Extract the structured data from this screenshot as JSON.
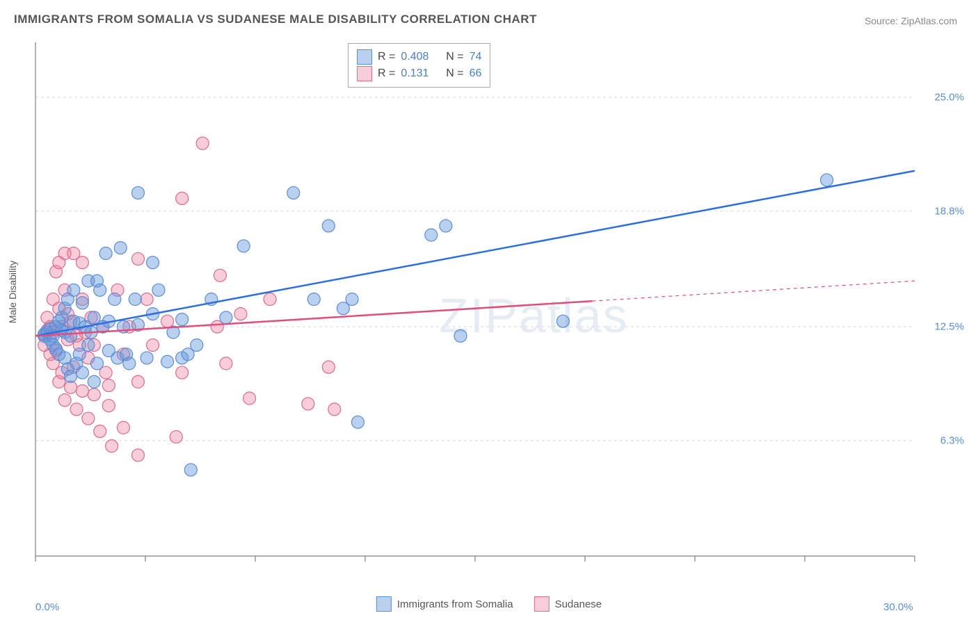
{
  "title": "IMMIGRANTS FROM SOMALIA VS SUDANESE MALE DISABILITY CORRELATION CHART",
  "source_label": "Source: ZipAtlas.com",
  "watermark": "ZIPatlas",
  "y_axis_label": "Male Disability",
  "chart": {
    "type": "scatter",
    "background_color": "#ffffff",
    "grid_color": "#d8d8d8",
    "xlim": [
      0,
      30
    ],
    "ylim": [
      0,
      28
    ],
    "x_ticks_minor": [
      0,
      3.75,
      7.5,
      11.25,
      15,
      18.75,
      22.5,
      26.25,
      30
    ],
    "x_tick_labels": [
      {
        "v": 0,
        "label": "0.0%"
      },
      {
        "v": 30,
        "label": "30.0%"
      }
    ],
    "y_gridlines": [
      6.3,
      12.5,
      18.8,
      25.0
    ],
    "y_tick_labels": [
      {
        "v": 6.3,
        "label": "6.3%"
      },
      {
        "v": 12.5,
        "label": "12.5%"
      },
      {
        "v": 18.8,
        "label": "18.8%"
      },
      {
        "v": 25.0,
        "label": "25.0%"
      }
    ],
    "tick_label_color": "#5a8dd6",
    "tick_label_fontsize": 15,
    "axis_line_color": "#666666"
  },
  "series": [
    {
      "name": "Immigrants from Somalia",
      "key": "somalia",
      "color_fill": "rgba(100,150,220,0.45)",
      "color_stroke": "#5a8dd6",
      "line_color": "#2d6fe0",
      "line_width": 2.5,
      "stats": {
        "R": "0.408",
        "N": "74"
      },
      "trend": {
        "x1": 0,
        "y1": 12.0,
        "x2": 30,
        "y2": 21.0,
        "solid_until_x": 30
      },
      "points": [
        [
          0.3,
          12.0
        ],
        [
          0.3,
          12.1
        ],
        [
          0.4,
          12.2
        ],
        [
          0.5,
          11.8
        ],
        [
          0.5,
          12.4
        ],
        [
          0.6,
          12.0
        ],
        [
          0.6,
          11.5
        ],
        [
          0.7,
          12.5
        ],
        [
          0.7,
          11.3
        ],
        [
          0.8,
          12.8
        ],
        [
          0.8,
          11.0
        ],
        [
          0.9,
          13.0
        ],
        [
          0.9,
          12.3
        ],
        [
          1.0,
          12.2
        ],
        [
          1.0,
          10.8
        ],
        [
          1.0,
          13.5
        ],
        [
          1.1,
          10.2
        ],
        [
          1.1,
          14.0
        ],
        [
          1.2,
          12.0
        ],
        [
          1.2,
          9.8
        ],
        [
          1.3,
          14.5
        ],
        [
          1.3,
          12.8
        ],
        [
          1.4,
          10.5
        ],
        [
          1.5,
          11.0
        ],
        [
          1.5,
          12.7
        ],
        [
          1.6,
          13.8
        ],
        [
          1.6,
          10.0
        ],
        [
          1.7,
          12.5
        ],
        [
          1.8,
          11.5
        ],
        [
          1.8,
          15.0
        ],
        [
          1.9,
          12.2
        ],
        [
          2.0,
          9.5
        ],
        [
          2.0,
          13.0
        ],
        [
          2.1,
          15.0
        ],
        [
          2.1,
          10.5
        ],
        [
          2.2,
          14.5
        ],
        [
          2.3,
          12.5
        ],
        [
          2.4,
          16.5
        ],
        [
          2.5,
          12.8
        ],
        [
          2.5,
          11.2
        ],
        [
          2.7,
          14.0
        ],
        [
          2.8,
          10.8
        ],
        [
          2.9,
          16.8
        ],
        [
          3.0,
          12.5
        ],
        [
          3.1,
          11.0
        ],
        [
          3.2,
          10.5
        ],
        [
          3.4,
          14.0
        ],
        [
          3.5,
          19.8
        ],
        [
          3.5,
          12.6
        ],
        [
          3.8,
          10.8
        ],
        [
          4.0,
          16.0
        ],
        [
          4.0,
          13.2
        ],
        [
          4.2,
          14.5
        ],
        [
          4.5,
          10.6
        ],
        [
          4.7,
          12.2
        ],
        [
          5.0,
          10.8
        ],
        [
          5.0,
          12.9
        ],
        [
          5.2,
          11.0
        ],
        [
          5.3,
          4.7
        ],
        [
          5.5,
          11.5
        ],
        [
          6.0,
          14.0
        ],
        [
          6.5,
          13.0
        ],
        [
          7.1,
          16.9
        ],
        [
          8.8,
          19.8
        ],
        [
          9.5,
          14.0
        ],
        [
          10.0,
          18.0
        ],
        [
          10.5,
          13.5
        ],
        [
          10.8,
          14.0
        ],
        [
          11.0,
          7.3
        ],
        [
          13.5,
          17.5
        ],
        [
          14.0,
          18.0
        ],
        [
          18.0,
          12.8
        ],
        [
          14.5,
          12.0
        ],
        [
          27.0,
          20.5
        ]
      ]
    },
    {
      "name": "Sudanese",
      "key": "sudanese",
      "color_fill": "rgba(235,130,160,0.40)",
      "color_stroke": "#e06a8c",
      "line_color": "#e34d7a",
      "line_width": 2.5,
      "stats": {
        "R": "0.131",
        "N": "66"
      },
      "trend": {
        "x1": 0,
        "y1": 12.0,
        "x2": 30,
        "y2": 15.0,
        "solid_until_x": 19
      },
      "points": [
        [
          0.3,
          12.0
        ],
        [
          0.3,
          11.5
        ],
        [
          0.4,
          12.3
        ],
        [
          0.4,
          13.0
        ],
        [
          0.5,
          11.0
        ],
        [
          0.5,
          12.5
        ],
        [
          0.6,
          14.0
        ],
        [
          0.6,
          10.5
        ],
        [
          0.6,
          12.2
        ],
        [
          0.7,
          15.5
        ],
        [
          0.7,
          11.2
        ],
        [
          0.8,
          13.5
        ],
        [
          0.8,
          9.5
        ],
        [
          0.8,
          16.0
        ],
        [
          0.9,
          12.5
        ],
        [
          0.9,
          10.0
        ],
        [
          1.0,
          14.5
        ],
        [
          1.0,
          16.5
        ],
        [
          1.0,
          8.5
        ],
        [
          1.1,
          11.8
        ],
        [
          1.1,
          13.2
        ],
        [
          1.2,
          9.2
        ],
        [
          1.2,
          12.8
        ],
        [
          1.3,
          16.5
        ],
        [
          1.3,
          10.3
        ],
        [
          1.4,
          12.0
        ],
        [
          1.4,
          8.0
        ],
        [
          1.5,
          11.5
        ],
        [
          1.6,
          14.0
        ],
        [
          1.6,
          9.0
        ],
        [
          1.6,
          16.0
        ],
        [
          1.7,
          12.2
        ],
        [
          1.8,
          10.8
        ],
        [
          1.8,
          7.5
        ],
        [
          1.9,
          13.0
        ],
        [
          2.0,
          11.5
        ],
        [
          2.0,
          8.8
        ],
        [
          2.2,
          6.8
        ],
        [
          2.3,
          12.5
        ],
        [
          2.4,
          10.0
        ],
        [
          2.5,
          8.2
        ],
        [
          2.5,
          9.3
        ],
        [
          2.6,
          6.0
        ],
        [
          2.8,
          14.5
        ],
        [
          3.0,
          11.0
        ],
        [
          3.0,
          7.0
        ],
        [
          3.2,
          12.5
        ],
        [
          3.5,
          9.5
        ],
        [
          3.5,
          5.5
        ],
        [
          3.5,
          16.2
        ],
        [
          3.8,
          14.0
        ],
        [
          4.0,
          11.5
        ],
        [
          4.5,
          12.8
        ],
        [
          4.8,
          6.5
        ],
        [
          5.0,
          19.5
        ],
        [
          5.0,
          10.0
        ],
        [
          5.7,
          22.5
        ],
        [
          6.2,
          12.5
        ],
        [
          6.3,
          15.3
        ],
        [
          6.5,
          10.5
        ],
        [
          7.0,
          13.2
        ],
        [
          7.3,
          8.6
        ],
        [
          8.0,
          14.0
        ],
        [
          9.3,
          8.3
        ],
        [
          10.0,
          10.3
        ],
        [
          10.2,
          8.0
        ]
      ]
    }
  ],
  "stats_box": {
    "border_color": "#aaaaaa",
    "swatch_border_somalia": "#5a8dd6",
    "swatch_fill_somalia": "rgba(100,150,220,0.45)",
    "swatch_border_sudanese": "#e06a8c",
    "swatch_fill_sudanese": "rgba(235,130,160,0.40)",
    "R_label": "R =",
    "N_label": "N ="
  },
  "footer_legend": [
    {
      "swatch_fill": "rgba(100,150,220,0.45)",
      "swatch_border": "#5a8dd6",
      "label": "Immigrants from Somalia"
    },
    {
      "swatch_fill": "rgba(235,130,160,0.40)",
      "swatch_border": "#e06a8c",
      "label": "Sudanese"
    }
  ]
}
